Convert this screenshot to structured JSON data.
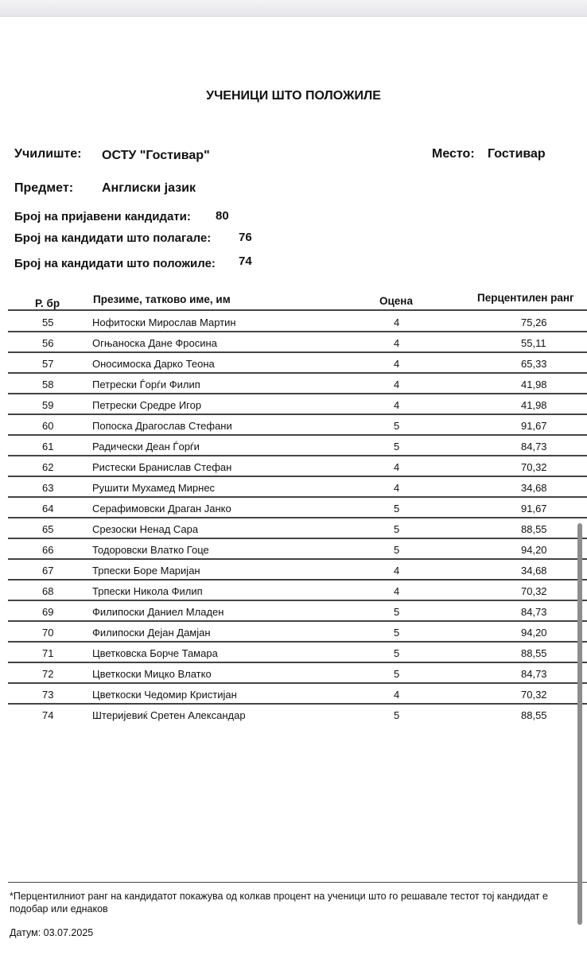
{
  "title": "УЧЕНИЦИ ШТО ПОЛОЖИЛЕ",
  "school_label": "Училиште:",
  "school": "ОСТУ \"Гостивар\"",
  "place_label": "Место:",
  "place": "Гостивар",
  "subject_label": "Предмет:",
  "subject": "Англиски јазик",
  "registered_label": "Број на пријавени кандидати:",
  "registered": "80",
  "took_label": "Број на кандидати што полагале:",
  "took": "76",
  "passed_label": "Број на кандидати што положиле:",
  "passed": "74",
  "table": {
    "headers": [
      "Р. бр",
      "Презиме, татково име, им",
      "Оцена",
      "Перцентилен ранг"
    ],
    "rows": [
      [
        "55",
        "Нофитоски Мирослав Мартин",
        "4",
        "75,26"
      ],
      [
        "56",
        "Огњаноска Дане Фросина",
        "4",
        "55,11"
      ],
      [
        "57",
        "Оносимоска Дарко Теона",
        "4",
        "65,33"
      ],
      [
        "58",
        "Петрески Ѓорѓи Филип",
        "4",
        "41,98"
      ],
      [
        "59",
        "Петрески Средре Игор",
        "4",
        "41,98"
      ],
      [
        "60",
        "Попоска Драгослав Стефани",
        "5",
        "91,67"
      ],
      [
        "61",
        "Радически Деан Ѓорѓи",
        "5",
        "84,73"
      ],
      [
        "62",
        "Ристески Бранислав Стефан",
        "4",
        "70,32"
      ],
      [
        "63",
        "Рушити Мухамед Мирнес",
        "4",
        "34,68"
      ],
      [
        "64",
        "Серафимовски Драган Јанко",
        "5",
        "91,67"
      ],
      [
        "65",
        "Срезоски Ненад Сара",
        "5",
        "88,55"
      ],
      [
        "66",
        "Тодоровски Влатко Гоце",
        "5",
        "94,20"
      ],
      [
        "67",
        "Трпески Боре Маријан",
        "4",
        "34,68"
      ],
      [
        "68",
        "Трпески Никола Филип",
        "4",
        "70,32"
      ],
      [
        "69",
        "Филипоски Даниел Младен",
        "5",
        "84,73"
      ],
      [
        "70",
        "Филипоски Дејан Дамјан",
        "5",
        "94,20"
      ],
      [
        "71",
        "Цветковска Борче Тамара",
        "5",
        "88,55"
      ],
      [
        "72",
        "Цветкоски Мицко Влатко",
        "5",
        "84,73"
      ],
      [
        "73",
        "Цветкоски Чедомир Кристијан",
        "4",
        "70,32"
      ],
      [
        "74",
        "Штеријевиќ Сретен Александар",
        "5",
        "88,55"
      ]
    ]
  },
  "footnote": "*Перцентилниот ранг на кандидатот покажува од колкав процент на ученици што го решавале тестот тој кандидат е подобар или еднаков",
  "date": "Датум: 03.07.2025"
}
